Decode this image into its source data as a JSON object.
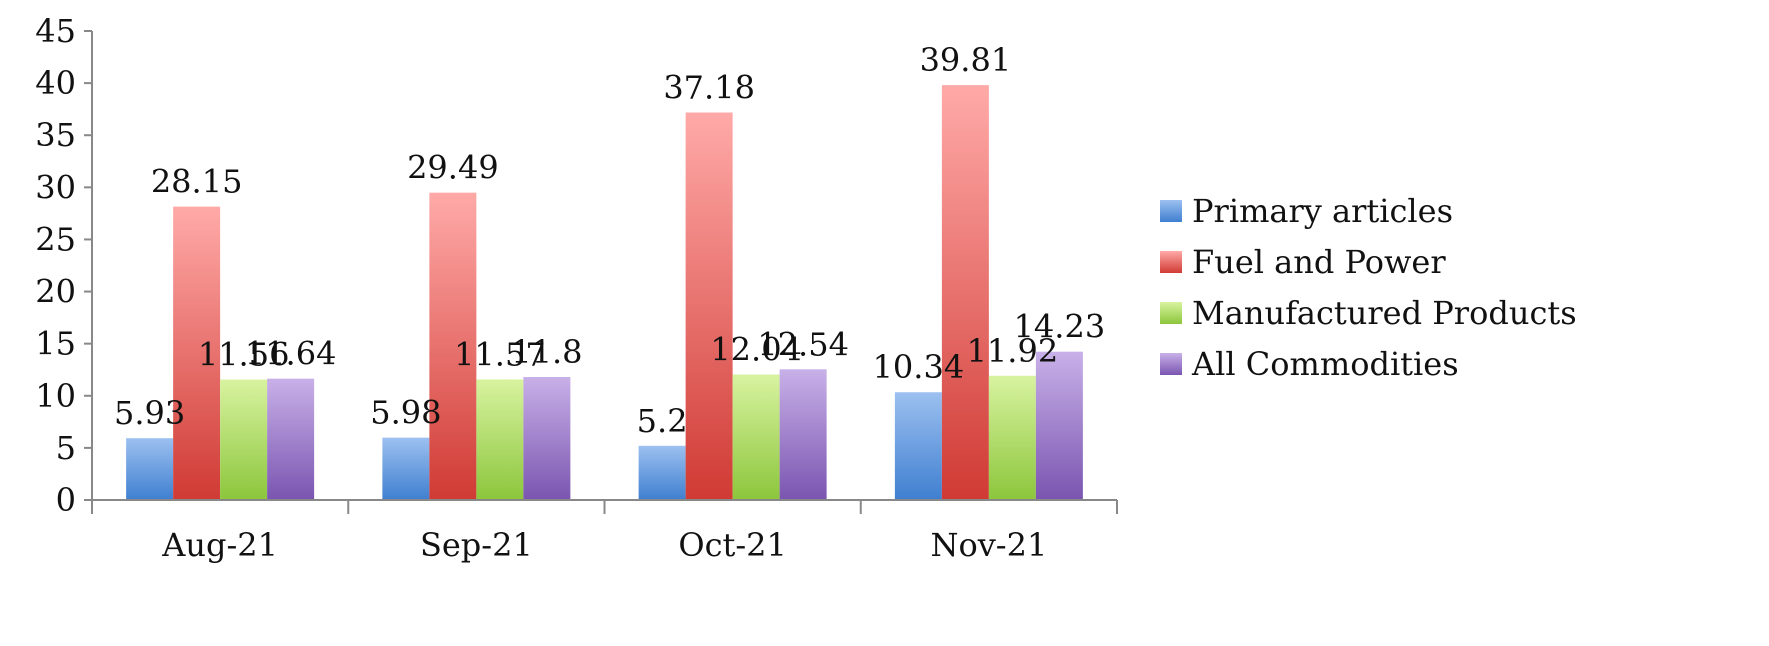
{
  "chart_data": {
    "type": "bar",
    "categories": [
      "Aug-21",
      "Sep-21",
      "Oct-21",
      "Nov-21"
    ],
    "series": [
      {
        "name": "Primary articles",
        "values": [
          5.93,
          5.98,
          5.2,
          10.34
        ],
        "color_top": "#9CC0F0",
        "color_bottom": "#3F7FD0"
      },
      {
        "name": "Fuel and Power",
        "values": [
          28.15,
          29.49,
          37.18,
          39.81
        ],
        "color_top": "#FFAAA8",
        "color_bottom": "#D03A34"
      },
      {
        "name": "Manufactured Products",
        "values": [
          11.56,
          11.57,
          12.04,
          11.92
        ],
        "color_top": "#D8F3A0",
        "color_bottom": "#8CC63C"
      },
      {
        "name": "All Commodities",
        "values": [
          11.64,
          11.8,
          12.54,
          14.23
        ],
        "color_top": "#C8B0E8",
        "color_bottom": "#7A55B0"
      }
    ],
    "yticks": [
      "0",
      "5",
      "10",
      "15",
      "20",
      "25",
      "30",
      "35",
      "40",
      "45"
    ],
    "ylim": [
      0,
      45
    ],
    "grid": false,
    "legend_position": "right"
  }
}
